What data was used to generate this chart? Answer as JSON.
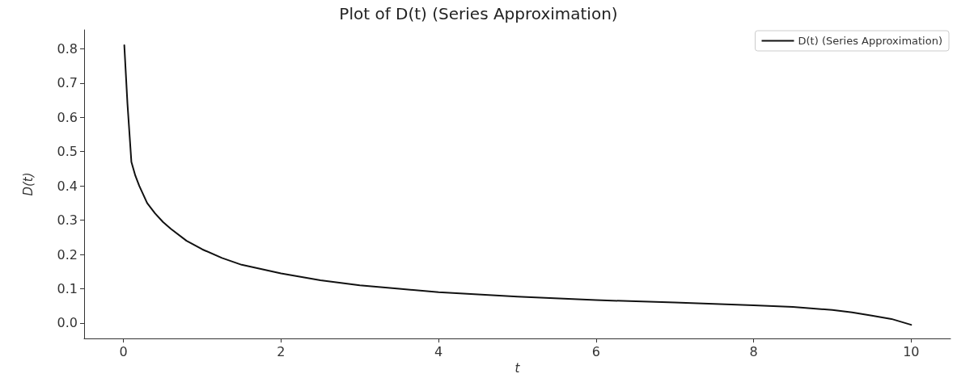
{
  "chart_data": {
    "type": "line",
    "title": "Plot of D(t) (Series Approximation)",
    "xlabel": "t",
    "ylabel": "D(t)",
    "x": [
      0.01,
      0.05,
      0.1,
      0.15,
      0.2,
      0.3,
      0.4,
      0.5,
      0.6,
      0.8,
      1,
      1.25,
      1.5,
      2,
      2.5,
      3,
      3.5,
      4,
      5,
      6,
      7,
      8,
      8.5,
      9,
      9.25,
      9.5,
      9.75,
      10
    ],
    "series": [
      {
        "name": "D(t) (Series Approximation)",
        "color": "#111111",
        "values": [
          0.81,
          0.64,
          0.47,
          0.43,
          0.4,
          0.35,
          0.32,
          0.295,
          0.275,
          0.24,
          0.215,
          0.19,
          0.17,
          0.145,
          0.125,
          0.11,
          0.1,
          0.09,
          0.077,
          0.067,
          0.06,
          0.052,
          0.047,
          0.038,
          0.031,
          0.022,
          0.012,
          -0.005
        ]
      }
    ],
    "xlim": [
      -0.5,
      10.5
    ],
    "xticks": [
      0,
      2,
      4,
      6,
      8,
      10
    ],
    "ylim": [
      -0.045,
      0.855
    ],
    "yticks": [
      {
        "value": 0,
        "label": "0.0"
      },
      0.1,
      0.2,
      0.3,
      0.4,
      0.5,
      0.6,
      0.7,
      0.8
    ],
    "legend": "top right",
    "grid": false,
    "marker": "none",
    "line_style": "solid"
  }
}
